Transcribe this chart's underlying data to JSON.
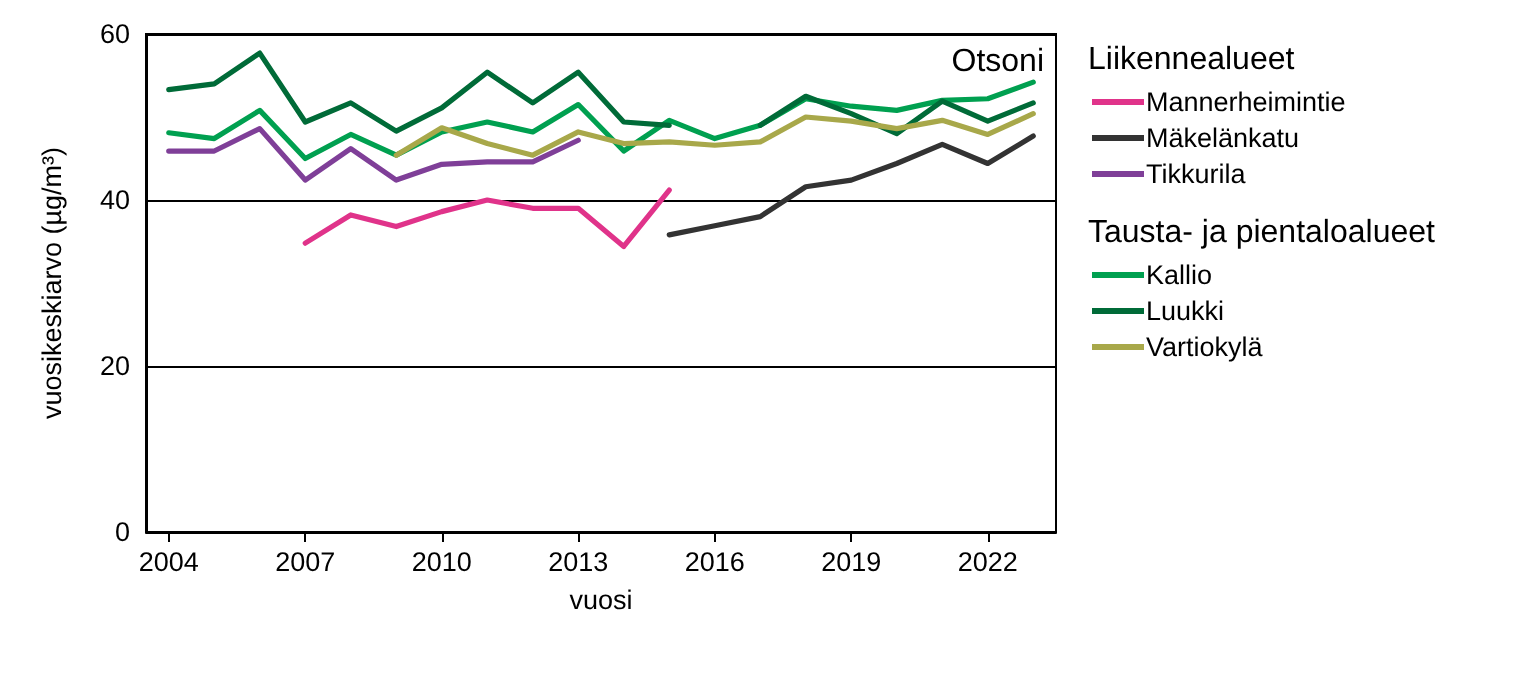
{
  "chart_data": {
    "type": "line",
    "xlabel": "vuosi",
    "ylabel": "vuosikeskiarvo (µg/m³)",
    "annotations": [
      "Otsoni"
    ],
    "legend_title": [
      "Liikennealueet",
      "Tausta- ja pientaloalueet"
    ],
    "x": [
      2004,
      2005,
      2006,
      2007,
      2008,
      2009,
      2010,
      2011,
      2012,
      2013,
      2014,
      2015,
      2016,
      2017,
      2018,
      2019,
      2020,
      2021,
      2022,
      2023
    ],
    "xlim": [
      2003.5,
      2023.5
    ],
    "xticks": [
      2004,
      2007,
      2010,
      2013,
      2016,
      2019,
      2022
    ],
    "ylim": [
      0,
      60
    ],
    "yticks": [
      0,
      20,
      40,
      60
    ],
    "grid": "y",
    "legend": "right",
    "marker": "none",
    "line_style": "solid",
    "series": [
      {
        "name": "Mannerheimintie",
        "color": "#e0338a",
        "values": [
          null,
          null,
          null,
          34.8,
          38.2,
          36.8,
          38.6,
          40.0,
          39.0,
          39.0,
          34.4,
          41.2,
          null,
          null,
          null,
          null,
          null,
          null,
          null,
          null
        ]
      },
      {
        "name": "Mäkelänkatu",
        "color": "#333333",
        "values": [
          null,
          null,
          null,
          null,
          null,
          null,
          null,
          null,
          null,
          null,
          null,
          35.8,
          36.9,
          38.0,
          41.6,
          42.4,
          44.4,
          46.7,
          44.4,
          47.7
        ]
      },
      {
        "name": "Tikkurila",
        "color": "#7f3f98",
        "values": [
          45.9,
          45.9,
          48.6,
          42.4,
          46.2,
          42.4,
          44.3,
          44.6,
          44.6,
          47.2,
          null,
          null,
          null,
          null,
          null,
          null,
          null,
          null,
          null,
          null
        ]
      },
      {
        "name": "Kallio",
        "color": "#00a050",
        "values": [
          48.1,
          47.4,
          50.8,
          45.0,
          47.9,
          45.4,
          48.2,
          49.4,
          48.2,
          51.5,
          45.9,
          49.6,
          47.4,
          49.0,
          52.2,
          51.3,
          50.8,
          52.0,
          52.2,
          54.2
        ]
      },
      {
        "name": "Luukki",
        "color": "#006b38",
        "values": [
          53.3,
          54.0,
          57.7,
          49.4,
          51.7,
          48.3,
          51.1,
          55.4,
          51.7,
          55.4,
          49.4,
          49.0,
          null,
          49.0,
          52.5,
          50.4,
          48.0,
          51.9,
          49.5,
          51.7
        ]
      },
      {
        "name": "Vartiokylä",
        "color": "#a8a84a",
        "values": [
          null,
          null,
          null,
          null,
          null,
          45.4,
          48.7,
          46.8,
          45.4,
          48.2,
          46.8,
          47.0,
          46.6,
          47.0,
          50.0,
          49.5,
          48.6,
          49.6,
          47.9,
          50.4
        ]
      }
    ]
  }
}
